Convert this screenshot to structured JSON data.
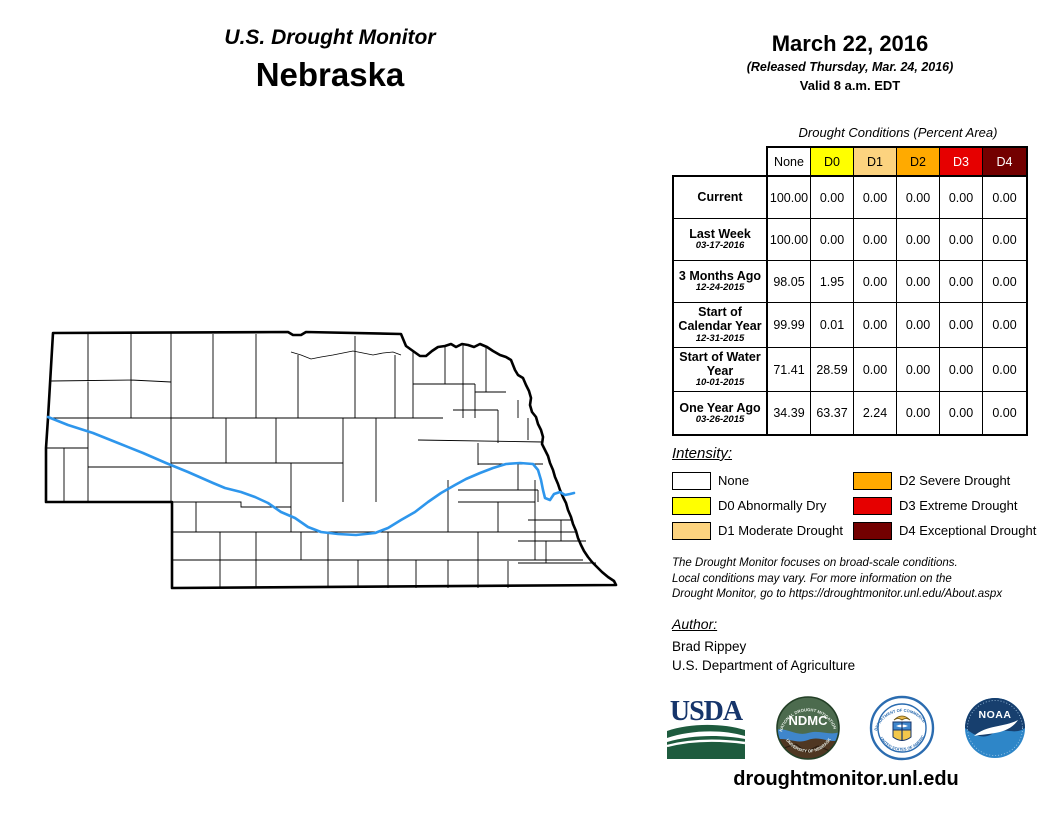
{
  "header": {
    "title": "U.S. Drought Monitor",
    "region": "Nebraska",
    "date": "March 22, 2016",
    "released": "(Released Thursday, Mar. 24, 2016)",
    "valid": "Valid 8 a.m. EDT"
  },
  "table": {
    "title": "Drought Conditions (Percent Area)",
    "columns": [
      {
        "label": "None",
        "color": "#FFFFFF",
        "text": "#000000"
      },
      {
        "label": "D0",
        "color": "#FFFF00",
        "text": "#000000"
      },
      {
        "label": "D1",
        "color": "#FCD37F",
        "text": "#000000"
      },
      {
        "label": "D2",
        "color": "#FFAA00",
        "text": "#000000"
      },
      {
        "label": "D3",
        "color": "#E60000",
        "text": "#FFFFFF"
      },
      {
        "label": "D4",
        "color": "#730000",
        "text": "#FFFFFF"
      }
    ],
    "rows": [
      {
        "label": "Current",
        "date": "",
        "values": [
          "100.00",
          "0.00",
          "0.00",
          "0.00",
          "0.00",
          "0.00"
        ]
      },
      {
        "label": "Last Week",
        "date": "03-17-2016",
        "values": [
          "100.00",
          "0.00",
          "0.00",
          "0.00",
          "0.00",
          "0.00"
        ]
      },
      {
        "label": "3 Months Ago",
        "date": "12-24-2015",
        "values": [
          "98.05",
          "1.95",
          "0.00",
          "0.00",
          "0.00",
          "0.00"
        ]
      },
      {
        "label": "Start of Calendar Year",
        "date": "12-31-2015",
        "values": [
          "99.99",
          "0.01",
          "0.00",
          "0.00",
          "0.00",
          "0.00"
        ]
      },
      {
        "label": "Start of Water Year",
        "date": "10-01-2015",
        "values": [
          "71.41",
          "28.59",
          "0.00",
          "0.00",
          "0.00",
          "0.00"
        ]
      },
      {
        "label": "One Year Ago",
        "date": "03-26-2015",
        "values": [
          "34.39",
          "63.37",
          "2.24",
          "0.00",
          "0.00",
          "0.00"
        ]
      }
    ]
  },
  "chart_data": {
    "type": "table",
    "title": "Drought Conditions (Percent Area)",
    "categories": [
      "None",
      "D0",
      "D1",
      "D2",
      "D3",
      "D4"
    ],
    "series": [
      {
        "name": "Current",
        "values": [
          100.0,
          0.0,
          0.0,
          0.0,
          0.0,
          0.0
        ]
      },
      {
        "name": "Last Week 03-17-2016",
        "values": [
          100.0,
          0.0,
          0.0,
          0.0,
          0.0,
          0.0
        ]
      },
      {
        "name": "3 Months Ago 12-24-2015",
        "values": [
          98.05,
          1.95,
          0.0,
          0.0,
          0.0,
          0.0
        ]
      },
      {
        "name": "Start of Calendar Year 12-31-2015",
        "values": [
          99.99,
          0.01,
          0.0,
          0.0,
          0.0,
          0.0
        ]
      },
      {
        "name": "Start of Water Year 10-01-2015",
        "values": [
          71.41,
          28.59,
          0.0,
          0.0,
          0.0,
          0.0
        ]
      },
      {
        "name": "One Year Ago 03-26-2015",
        "values": [
          34.39,
          63.37,
          2.24,
          0.0,
          0.0,
          0.0
        ]
      }
    ]
  },
  "legend": {
    "heading": "Intensity:",
    "items": [
      {
        "label": "None",
        "color": "#FFFFFF"
      },
      {
        "label": "D0 Abnormally Dry",
        "color": "#FFFF00"
      },
      {
        "label": "D1 Moderate Drought",
        "color": "#FCD37F"
      },
      {
        "label": "D2 Severe Drought",
        "color": "#FFAA00"
      },
      {
        "label": "D3 Extreme Drought",
        "color": "#E60000"
      },
      {
        "label": "D4 Exceptional Drought",
        "color": "#730000"
      }
    ]
  },
  "disclaimer": {
    "lines": [
      "The Drought Monitor focuses on broad-scale conditions.",
      "Local conditions may vary. For more information on the",
      "Drought Monitor, go to https://droughtmonitor.unl.edu/About.aspx"
    ]
  },
  "author": {
    "heading": "Author:",
    "name": "Brad Rippey",
    "org": "U.S. Department of Agriculture"
  },
  "logos": [
    {
      "name": "USDA"
    },
    {
      "name": "NDMC"
    },
    {
      "name": "Department of Commerce"
    },
    {
      "name": "NOAA"
    }
  ],
  "footer": {
    "url": "droughtmonitor.unl.edu"
  },
  "map": {
    "state": "Nebraska",
    "river_color": "#2E96EC",
    "outline_color": "#000000",
    "fill_color": "#FFFFFF"
  }
}
